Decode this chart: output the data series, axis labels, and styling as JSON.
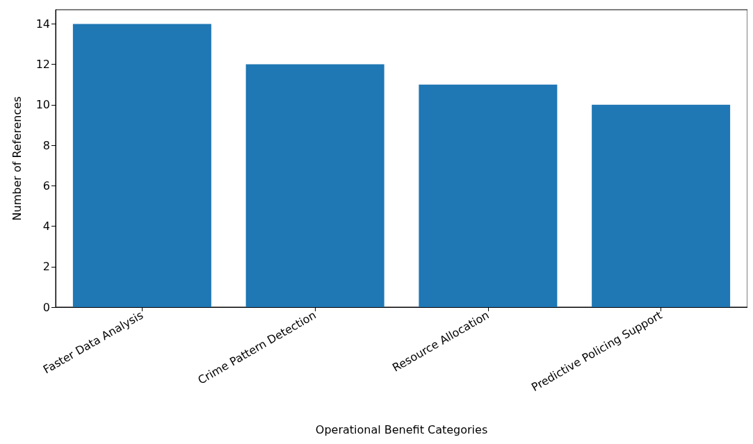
{
  "chart_data": {
    "type": "bar",
    "xlabel": "Operational Benefit Categories",
    "ylabel": "Number of References",
    "categories": [
      "Faster Data Analysis",
      "Crime Pattern Detection",
      "Resource Allocation",
      "Predictive Policing Support"
    ],
    "values": [
      14,
      12,
      11,
      10
    ],
    "color": "#1f77b4",
    "ylim": [
      0,
      14.7
    ],
    "yticks": [
      0,
      2,
      4,
      6,
      8,
      10,
      12,
      14
    ],
    "grid": false
  }
}
